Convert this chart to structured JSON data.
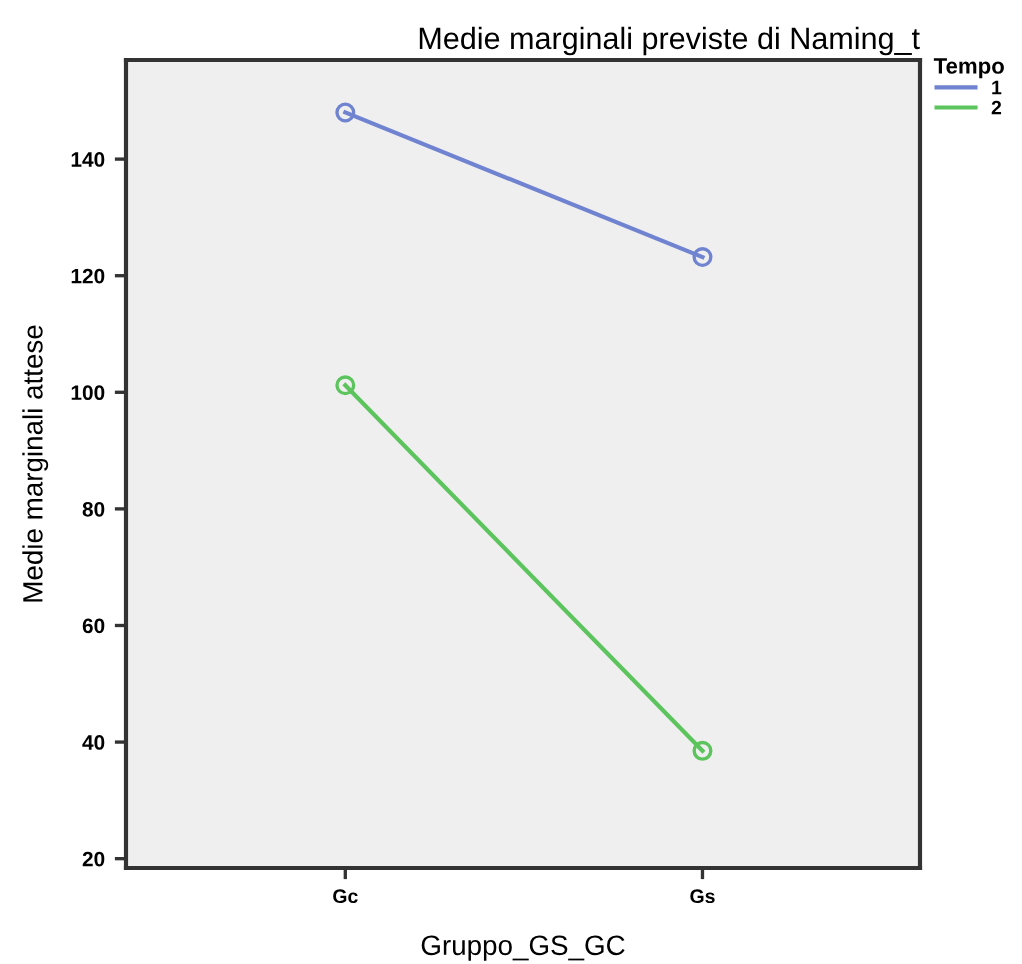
{
  "chart_data": {
    "type": "line",
    "title": "Medie marginali previste di Naming_t",
    "xlabel": "Gruppo_GS_GC",
    "ylabel": "Medie marginali attese",
    "legend_title": "Tempo",
    "categories": [
      "Gc",
      "Gs"
    ],
    "series": [
      {
        "name": "1",
        "color": "#7083d0",
        "values": [
          148,
          123.2
        ]
      },
      {
        "name": "2",
        "color": "#5cc45c",
        "values": [
          101.2,
          38.5
        ]
      }
    ],
    "ylim": [
      18.4,
      157
    ],
    "yticks": [
      20,
      40,
      60,
      80,
      100,
      120,
      140
    ],
    "marker": "circle",
    "line_style": "solid",
    "grid": false,
    "legend": "top right"
  }
}
